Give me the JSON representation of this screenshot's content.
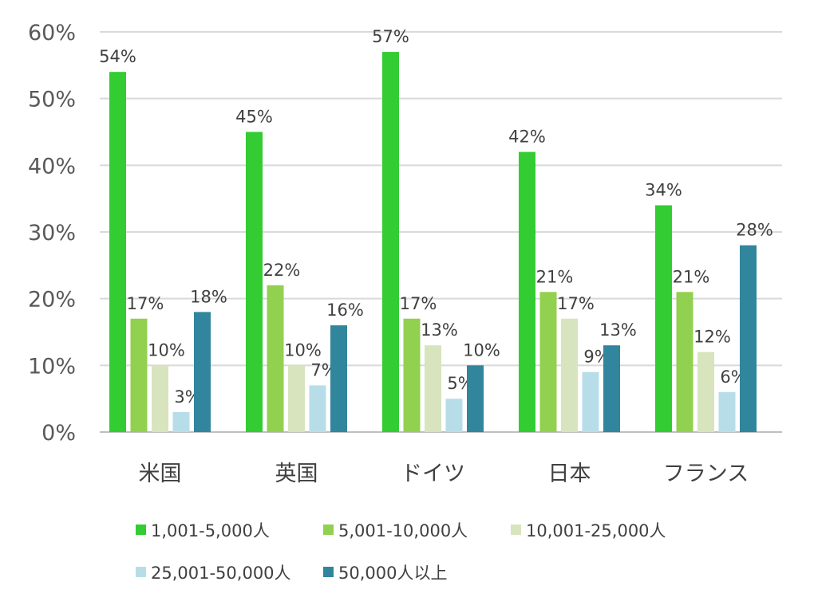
{
  "chart_data": {
    "type": "bar",
    "title": "",
    "xlabel": "",
    "ylabel": "",
    "ylim": [
      0,
      60
    ],
    "yticks": [
      "0%",
      "10%",
      "20%",
      "30%",
      "40%",
      "50%",
      "60%"
    ],
    "ytick_values": [
      0,
      10,
      20,
      30,
      40,
      50,
      60
    ],
    "grid": true,
    "legend_position": "bottom",
    "categories": [
      "米国",
      "英国",
      "ドイツ",
      "日本",
      "フランス"
    ],
    "series": [
      {
        "name": "1,001-5,000人",
        "color": "#33cc33",
        "values": [
          54,
          45,
          57,
          42,
          34
        ]
      },
      {
        "name": "5,001-10,000人",
        "color": "#92d050",
        "values": [
          17,
          22,
          17,
          21,
          21
        ]
      },
      {
        "name": "10,001-25,000人",
        "color": "#d7e4bd",
        "values": [
          10,
          10,
          13,
          17,
          12
        ]
      },
      {
        "name": "25,001-50,000人",
        "color": "#b7dee8",
        "values": [
          3,
          7,
          5,
          9,
          6
        ]
      },
      {
        "name": "50,000人以上",
        "color": "#31859c",
        "values": [
          18,
          16,
          10,
          13,
          28
        ]
      }
    ],
    "value_suffix": "%"
  }
}
